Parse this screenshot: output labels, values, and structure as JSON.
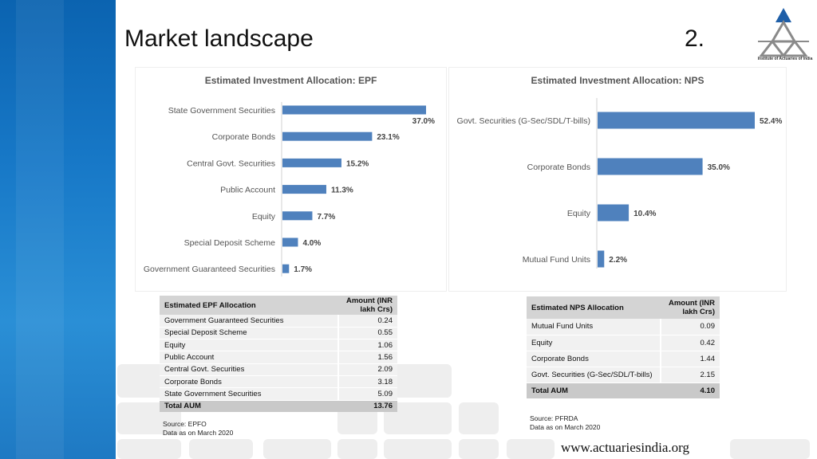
{
  "slide": {
    "title": "Market landscape",
    "slide_number": "2.",
    "logo_text": "Institute of Actuaries of India",
    "website": "www.actuariesindia.org"
  },
  "colors": {
    "bar": "#4f81bd",
    "left_strip": "#1778c7",
    "table_header": "#d4d4d4",
    "table_row": "#f1f1f1"
  },
  "chart_data": [
    {
      "type": "bar",
      "orientation": "horizontal",
      "title": "Estimated Investment Allocation: EPF",
      "categories": [
        "State Government Securities",
        "Corporate Bonds",
        "Central Govt. Securities",
        "Public Account",
        "Equity",
        "Special Deposit Scheme",
        "Government Guaranteed Securities"
      ],
      "values": [
        37.0,
        23.1,
        15.2,
        11.3,
        7.7,
        4.0,
        1.7
      ],
      "data_labels": [
        "37.0%",
        "23.1%",
        "15.2%",
        "11.3%",
        "7.7%",
        "4.0%",
        "1.7%"
      ],
      "xlim": [
        0,
        37.0
      ],
      "grid": false,
      "legend": "none"
    },
    {
      "type": "bar",
      "orientation": "horizontal",
      "title": "Estimated Investment Allocation: NPS",
      "categories": [
        "Govt. Securities (G-Sec/SDL/T-bills)",
        "Corporate Bonds",
        "Equity",
        "Mutual Fund Units"
      ],
      "values": [
        52.4,
        35.0,
        10.4,
        2.2
      ],
      "data_labels": [
        "52.4%",
        "35.0%",
        "10.4%",
        "2.2%"
      ],
      "xlim": [
        0,
        52.4
      ],
      "grid": false,
      "legend": "none"
    }
  ],
  "epf_table": {
    "header": {
      "label": "Estimated EPF Allocation",
      "amount": "Amount (INR lakh Crs)"
    },
    "rows": [
      {
        "label": "Government Guaranteed Securities",
        "amount": "0.24"
      },
      {
        "label": "Special Deposit Scheme",
        "amount": "0.55"
      },
      {
        "label": "Equity",
        "amount": "1.06"
      },
      {
        "label": "Public Account",
        "amount": "1.56"
      },
      {
        "label": "Central Govt. Securities",
        "amount": "2.09"
      },
      {
        "label": "Corporate Bonds",
        "amount": "3.18"
      },
      {
        "label": "State Government Securities",
        "amount": "5.09"
      }
    ],
    "total": {
      "label": "Total AUM",
      "amount": "13.76"
    },
    "source": "Source: EPFO",
    "date_note": "Data as on March 2020"
  },
  "nps_table": {
    "header": {
      "label": "Estimated NPS Allocation",
      "amount": "Amount (INR lakh Crs)"
    },
    "rows": [
      {
        "label": "Mutual Fund Units",
        "amount": "0.09"
      },
      {
        "label": "Equity",
        "amount": "0.42"
      },
      {
        "label": "Corporate Bonds",
        "amount": "1.44"
      },
      {
        "label": "Govt. Securities (G-Sec/SDL/T-bills)",
        "amount": "2.15"
      }
    ],
    "total": {
      "label": "Total AUM",
      "amount": "4.10"
    },
    "source": "Source: PFRDA",
    "date_note": "Data as on March 2020"
  }
}
